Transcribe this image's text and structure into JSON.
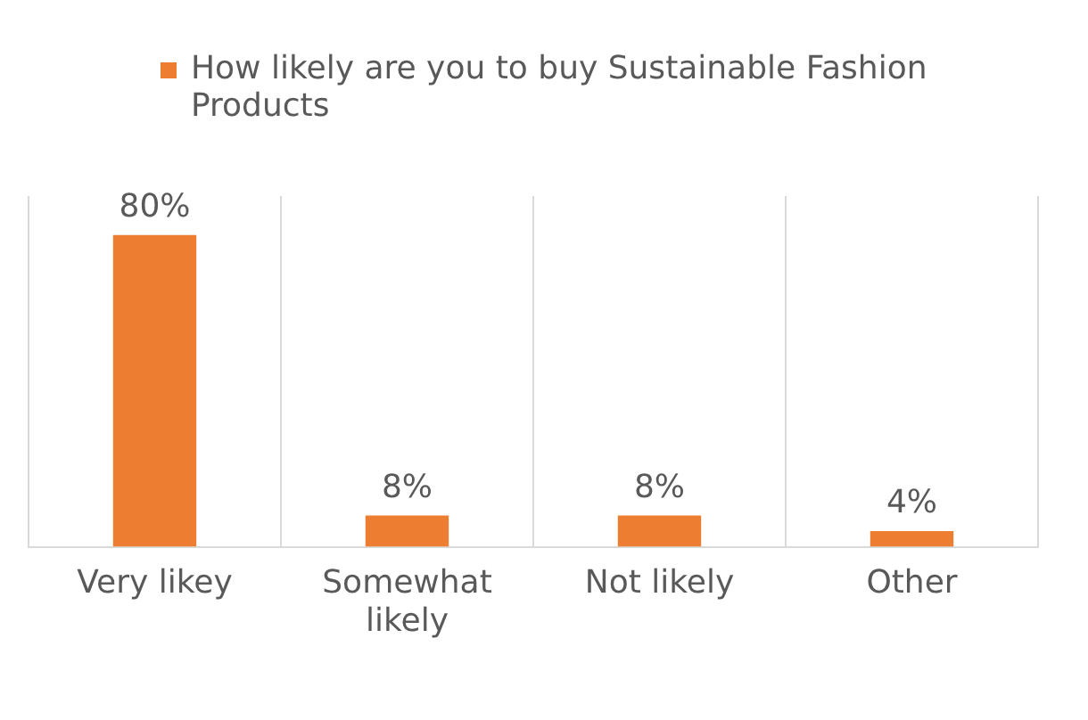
{
  "chart_data": {
    "type": "bar",
    "categories": [
      "Very likey",
      "Somewhat likely",
      "Not likely",
      "Other"
    ],
    "series": [
      {
        "name": "How likely are you to buy Sustainable Fashion Products",
        "color": "#ed7d31",
        "values": [
          80,
          8,
          8,
          4
        ],
        "value_labels": [
          "80%",
          "8%",
          "8%",
          "4%"
        ]
      }
    ],
    "grid": "x",
    "legend": "top"
  }
}
